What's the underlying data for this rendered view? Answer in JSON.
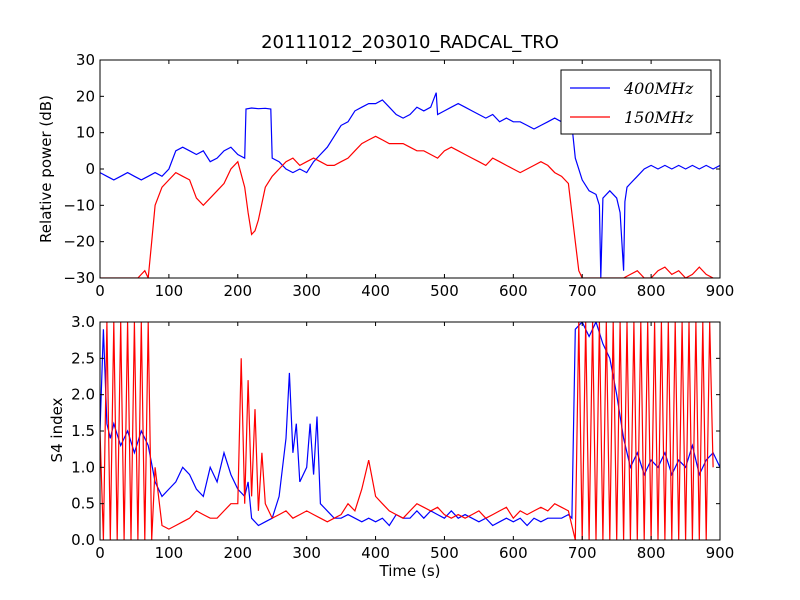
{
  "title": "20111012_203010_RADCAL_TRO",
  "chart_data": [
    {
      "type": "line",
      "title": "20111012_203010_RADCAL_TRO",
      "xlabel": "",
      "ylabel": "Relative power (dB)",
      "xlim": [
        0,
        900
      ],
      "ylim": [
        -30,
        30
      ],
      "xticks": [
        "0",
        "100",
        "200",
        "300",
        "400",
        "500",
        "600",
        "700",
        "800",
        "900"
      ],
      "yticks": [
        "−30",
        "−20",
        "−10",
        "0",
        "10",
        "20",
        "30"
      ],
      "legend_position": "top-right",
      "series": [
        {
          "name": "400MHz",
          "color": "#0000ff",
          "x": [
            0,
            10,
            20,
            30,
            40,
            50,
            60,
            70,
            80,
            90,
            100,
            110,
            120,
            130,
            140,
            150,
            160,
            170,
            180,
            190,
            200,
            210,
            212,
            220,
            230,
            240,
            248,
            250,
            260,
            270,
            280,
            290,
            300,
            310,
            320,
            330,
            340,
            350,
            360,
            370,
            380,
            390,
            400,
            410,
            420,
            430,
            440,
            450,
            460,
            470,
            480,
            488,
            490,
            500,
            510,
            520,
            530,
            540,
            550,
            560,
            570,
            580,
            590,
            600,
            610,
            620,
            630,
            640,
            650,
            660,
            670,
            680,
            685,
            690,
            700,
            710,
            720,
            725,
            727,
            730,
            740,
            750,
            755,
            760,
            762,
            765,
            770,
            780,
            790,
            800,
            810,
            820,
            830,
            840,
            850,
            860,
            870,
            880,
            890,
            900
          ],
          "values": [
            -1,
            -2,
            -3,
            -2,
            -1,
            -2,
            -3,
            -2,
            -1,
            -2,
            0,
            5,
            6,
            5,
            4,
            5,
            2,
            3,
            5,
            6,
            4,
            3,
            16.5,
            16.8,
            16.6,
            16.7,
            16.5,
            3,
            2,
            0,
            -1,
            0,
            -1,
            2,
            4,
            6,
            9,
            12,
            13,
            16,
            17,
            18,
            18,
            19,
            17,
            15,
            14,
            15,
            17,
            16,
            17,
            21,
            15,
            16,
            17,
            18,
            17,
            16,
            15,
            14,
            15,
            13,
            14,
            13,
            13,
            12,
            11,
            12,
            13,
            14,
            13,
            11,
            12,
            3,
            -3,
            -6,
            -7,
            -10,
            -30,
            -8,
            -6,
            -8,
            -12,
            -28,
            -9,
            -5,
            -4,
            -2,
            0,
            1,
            0,
            1,
            0,
            1,
            0,
            1,
            0,
            1,
            0,
            1
          ]
        },
        {
          "name": "150MHz",
          "color": "#ff0000",
          "x": [
            0,
            10,
            20,
            30,
            40,
            50,
            55,
            60,
            65,
            70,
            75,
            80,
            90,
            100,
            110,
            120,
            130,
            140,
            150,
            160,
            170,
            180,
            190,
            200,
            210,
            215,
            220,
            225,
            230,
            240,
            250,
            260,
            270,
            280,
            290,
            300,
            310,
            320,
            330,
            340,
            350,
            360,
            370,
            380,
            390,
            400,
            410,
            420,
            430,
            440,
            450,
            460,
            470,
            480,
            490,
            500,
            510,
            520,
            530,
            540,
            550,
            560,
            570,
            580,
            590,
            600,
            610,
            620,
            630,
            640,
            650,
            660,
            670,
            680,
            690,
            695,
            700,
            705,
            710,
            720,
            730,
            740,
            750,
            760,
            770,
            780,
            790,
            800,
            810,
            820,
            830,
            840,
            850,
            860,
            870,
            880,
            890
          ],
          "values": [
            -30,
            -30,
            -30,
            -30,
            -30,
            -30,
            -30,
            -29,
            -28,
            -30,
            -20,
            -10,
            -5,
            -3,
            -1,
            -2,
            -3,
            -8,
            -10,
            -8,
            -6,
            -4,
            0,
            2,
            -5,
            -12,
            -18,
            -17,
            -14,
            -5,
            -2,
            0,
            2,
            3,
            1,
            2,
            3,
            2,
            1,
            1,
            2,
            3,
            5,
            7,
            8,
            9,
            8,
            7,
            7,
            7,
            6,
            5,
            5,
            4,
            3,
            5,
            6,
            5,
            4,
            3,
            2,
            1,
            3,
            2,
            1,
            0,
            -1,
            0,
            1,
            2,
            1,
            -1,
            -2,
            -4,
            -20,
            -28,
            -30,
            -30,
            -30,
            -30,
            -30,
            -30,
            -30,
            -30,
            -29,
            -28,
            -30,
            -30,
            -28,
            -27,
            -29,
            -28,
            -30,
            -29,
            -27,
            -29,
            -30
          ]
        }
      ]
    },
    {
      "type": "line",
      "title": "",
      "xlabel": "Time (s)",
      "ylabel": "S4 index",
      "xlim": [
        0,
        900
      ],
      "ylim": [
        0,
        3
      ],
      "xticks": [
        "0",
        "100",
        "200",
        "300",
        "400",
        "500",
        "600",
        "700",
        "800",
        "900"
      ],
      "yticks": [
        "0.0",
        "0.5",
        "1.0",
        "1.5",
        "2.0",
        "2.5",
        "3.0"
      ],
      "series": [
        {
          "name": "400MHz",
          "color": "#0000ff",
          "x": [
            0,
            5,
            10,
            15,
            20,
            30,
            40,
            50,
            60,
            70,
            80,
            90,
            100,
            110,
            120,
            130,
            140,
            150,
            160,
            170,
            180,
            190,
            200,
            210,
            215,
            220,
            230,
            240,
            250,
            260,
            270,
            275,
            280,
            285,
            290,
            300,
            305,
            310,
            315,
            320,
            330,
            340,
            350,
            360,
            370,
            380,
            390,
            400,
            410,
            420,
            430,
            440,
            450,
            460,
            470,
            480,
            490,
            500,
            510,
            520,
            530,
            540,
            550,
            560,
            570,
            580,
            590,
            600,
            610,
            620,
            630,
            640,
            650,
            660,
            670,
            680,
            685,
            690,
            700,
            710,
            720,
            730,
            740,
            750,
            760,
            770,
            780,
            790,
            800,
            810,
            820,
            830,
            840,
            850,
            860,
            870,
            880,
            890,
            900
          ],
          "values": [
            1.5,
            2.9,
            1.6,
            1.4,
            1.6,
            1.3,
            1.5,
            1.2,
            1.5,
            1.3,
            0.8,
            0.6,
            0.7,
            0.8,
            1.0,
            0.9,
            0.7,
            0.6,
            1.0,
            0.8,
            1.2,
            0.9,
            0.7,
            0.6,
            0.8,
            0.3,
            0.2,
            0.25,
            0.3,
            0.6,
            1.4,
            2.3,
            1.2,
            1.6,
            0.8,
            1.0,
            1.6,
            0.9,
            1.7,
            0.5,
            0.4,
            0.3,
            0.3,
            0.35,
            0.3,
            0.25,
            0.3,
            0.25,
            0.3,
            0.2,
            0.35,
            0.3,
            0.3,
            0.4,
            0.3,
            0.4,
            0.35,
            0.3,
            0.4,
            0.3,
            0.35,
            0.3,
            0.25,
            0.3,
            0.2,
            0.25,
            0.3,
            0.25,
            0.3,
            0.2,
            0.3,
            0.25,
            0.3,
            0.3,
            0.3,
            0.35,
            0.3,
            2.9,
            3.0,
            2.8,
            3.0,
            2.7,
            2.5,
            2.0,
            1.4,
            1.0,
            1.2,
            0.9,
            1.1,
            1.0,
            1.2,
            0.9,
            1.1,
            1.0,
            1.3,
            0.9,
            1.1,
            1.2,
            1.0
          ]
        },
        {
          "name": "150MHz",
          "color": "#ff0000",
          "x": [
            0,
            5,
            10,
            15,
            20,
            25,
            30,
            35,
            40,
            45,
            50,
            55,
            60,
            65,
            70,
            75,
            80,
            90,
            100,
            110,
            120,
            130,
            140,
            150,
            160,
            170,
            180,
            190,
            200,
            205,
            210,
            215,
            220,
            225,
            230,
            235,
            240,
            250,
            260,
            270,
            280,
            290,
            300,
            310,
            320,
            330,
            340,
            350,
            360,
            370,
            380,
            390,
            400,
            410,
            420,
            430,
            440,
            450,
            460,
            470,
            480,
            490,
            500,
            510,
            520,
            530,
            540,
            550,
            560,
            570,
            580,
            590,
            600,
            610,
            620,
            630,
            640,
            650,
            660,
            670,
            680,
            690,
            695,
            700,
            705,
            710,
            715,
            720,
            725,
            730,
            735,
            740,
            745,
            750,
            755,
            760,
            765,
            770,
            775,
            780,
            785,
            790,
            795,
            800,
            805,
            810,
            815,
            820,
            825,
            830,
            835,
            840,
            845,
            850,
            855,
            860,
            865,
            870,
            875,
            880,
            885,
            890
          ],
          "values": [
            1.5,
            0.0,
            3.0,
            0.0,
            3.0,
            0.0,
            3.0,
            0.0,
            3.0,
            0.0,
            3.0,
            0.0,
            3.0,
            0.0,
            3.0,
            0.0,
            1.0,
            0.2,
            0.15,
            0.2,
            0.25,
            0.3,
            0.4,
            0.35,
            0.3,
            0.3,
            0.4,
            0.5,
            0.5,
            2.5,
            0.5,
            2.2,
            0.6,
            1.8,
            0.4,
            1.2,
            0.5,
            0.3,
            0.35,
            0.4,
            0.3,
            0.35,
            0.4,
            0.35,
            0.3,
            0.25,
            0.3,
            0.35,
            0.5,
            0.4,
            0.7,
            1.1,
            0.6,
            0.5,
            0.4,
            0.35,
            0.3,
            0.4,
            0.5,
            0.45,
            0.4,
            0.45,
            0.35,
            0.3,
            0.35,
            0.3,
            0.35,
            0.4,
            0.3,
            0.35,
            0.4,
            0.45,
            0.3,
            0.4,
            0.35,
            0.4,
            0.45,
            0.4,
            0.5,
            0.45,
            0.4,
            0.0,
            3.0,
            0.0,
            3.0,
            0.0,
            3.0,
            0.0,
            3.0,
            0.0,
            3.0,
            0.0,
            3.0,
            0.0,
            3.0,
            0.0,
            3.0,
            0.0,
            3.0,
            0.0,
            3.0,
            0.0,
            3.0,
            0.0,
            3.0,
            0.0,
            3.0,
            0.0,
            3.0,
            0.0,
            3.0,
            0.0,
            3.0,
            0.0,
            3.0,
            0.0,
            3.0,
            0.0,
            3.0,
            0.0,
            3.0,
            1.0
          ]
        }
      ]
    }
  ]
}
